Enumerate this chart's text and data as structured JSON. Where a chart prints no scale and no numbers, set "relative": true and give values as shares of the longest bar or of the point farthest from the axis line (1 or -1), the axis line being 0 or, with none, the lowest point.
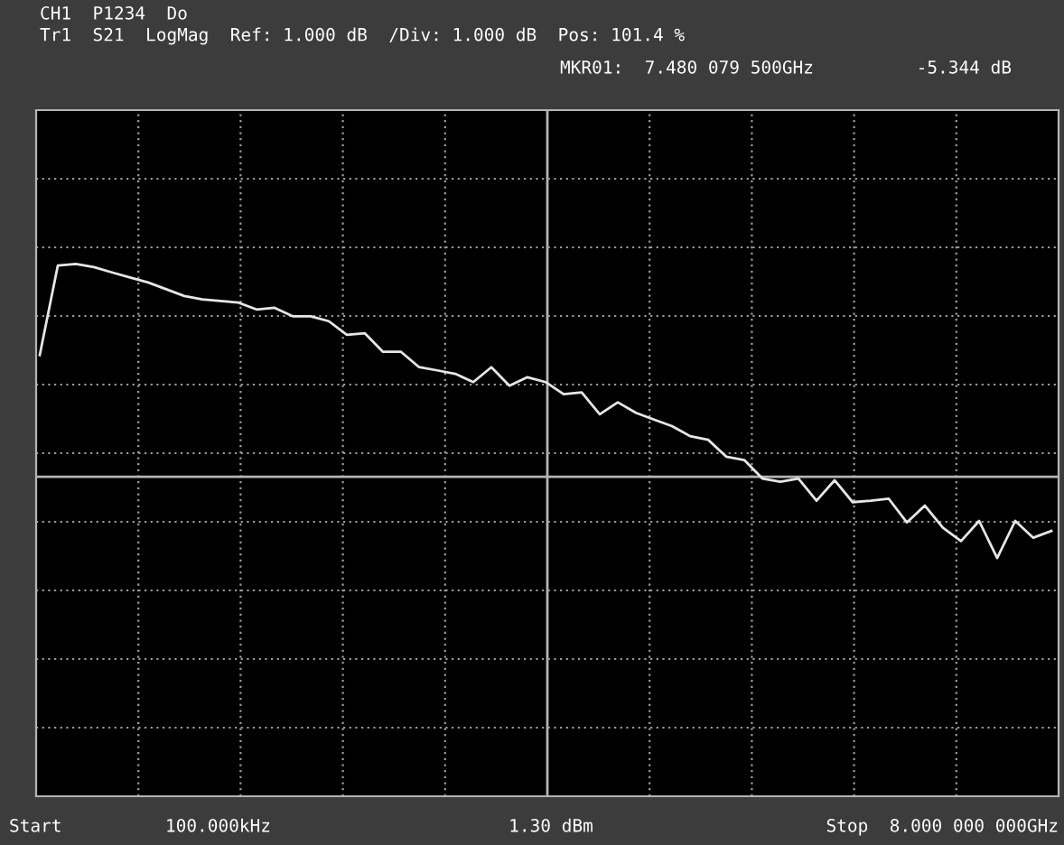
{
  "chart_data": {
    "type": "line",
    "relative": true,
    "title": "CH1  P1234  Do",
    "subtitle": "Tr1  S21  LogMag  Ref: 1.000 dB  /Div: 1.000 dB  Pos: 101.4 %",
    "annotations": [
      "MKR01:  7.480 079 500GHz",
      "-5.344 dB",
      "Start",
      "100.000kHz",
      "1.30 dBm",
      "Stop  8.000 000 000GHz"
    ],
    "categories": [
      null,
      null,
      null,
      null,
      null,
      null,
      null,
      null,
      null,
      null,
      null,
      null,
      null,
      null,
      null,
      null,
      null,
      null,
      null,
      null,
      null,
      null,
      null,
      null,
      null,
      null,
      null,
      null,
      null,
      null,
      null,
      null,
      null,
      null,
      null,
      null,
      null,
      null,
      null,
      null,
      null,
      null,
      null,
      null,
      null,
      null,
      null,
      null,
      null,
      null,
      null,
      null,
      null,
      null,
      null,
      null,
      null
    ],
    "grid": true,
    "series": [
      {
        "color": "#e6e6e6",
        "values": [
          0.572,
          0.992,
          1,
          0.985,
          0.96,
          0.936,
          0.913,
          0.881,
          0.849,
          0.833,
          0.826,
          0.818,
          0.786,
          0.794,
          0.754,
          0.754,
          0.731,
          0.667,
          0.674,
          0.587,
          0.587,
          0.515,
          0.5,
          0.484,
          0.445,
          0.515,
          0.428,
          0.468,
          0.445,
          0.388,
          0.397,
          0.294,
          0.35,
          0.301,
          0.269,
          0.238,
          0.191,
          0.174,
          0.095,
          0.079,
          -0.008,
          -0.023,
          -0.008,
          -0.112,
          -0.016,
          -0.119,
          -0.112,
          -0.103,
          -0.214,
          -0.135,
          -0.239,
          -0.302,
          -0.207,
          -0.381,
          -0.207,
          -0.286,
          -0.254
        ]
      }
    ]
  }
}
